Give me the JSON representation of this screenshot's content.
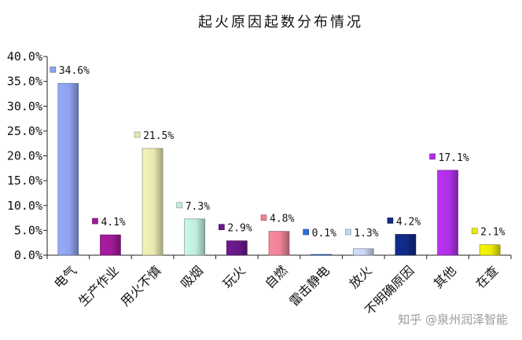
{
  "chart_data": {
    "type": "bar",
    "title": "起火原因起数分布情况",
    "categories": [
      "电气",
      "生产作业",
      "用火不慎",
      "吸烟",
      "玩火",
      "自燃",
      "雷击静电",
      "放火",
      "不明确原因",
      "其他",
      "在查"
    ],
    "values": [
      34.6,
      4.1,
      21.5,
      7.3,
      2.9,
      4.8,
      0.1,
      1.3,
      4.2,
      17.1,
      2.1
    ],
    "data_labels": [
      "34.6%",
      "4.1%",
      "21.5%",
      "7.3%",
      "2.9%",
      "4.8%",
      "0.1%",
      "1.3%",
      "4.2%",
      "17.1%",
      "2.1%"
    ],
    "colors": [
      "#8fa2ee",
      "#a01a98",
      "#e8e8b0",
      "#bfeee0",
      "#6a1888",
      "#ee8296",
      "#2f6fdc",
      "#c8d6f2",
      "#102a86",
      "#b030e6",
      "#ecec00"
    ],
    "ylim": [
      0,
      40
    ],
    "yticks": [
      "0.0%",
      "5.0%",
      "10.0%",
      "15.0%",
      "20.0%",
      "25.0%",
      "30.0%",
      "35.0%",
      "40.0%"
    ],
    "xlabel": "",
    "ylabel": "",
    "grid": false,
    "legend": "none"
  },
  "watermark": "知乎 @泉州润泽智能"
}
